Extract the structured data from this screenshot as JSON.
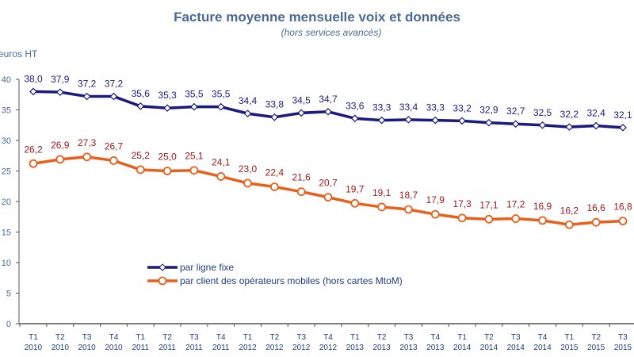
{
  "chart_data": {
    "type": "line",
    "title": "Facture moyenne mensuelle voix et données",
    "subtitle": "(hors services avancés)",
    "ylabel": "euros HT",
    "ylim": [
      0,
      40
    ],
    "yticks": [
      0,
      5,
      10,
      15,
      20,
      25,
      30,
      35,
      40
    ],
    "grid": false,
    "legend_placement": "center-left",
    "categories": [
      [
        "T1",
        "2010"
      ],
      [
        "T2",
        "2010"
      ],
      [
        "T3",
        "2010"
      ],
      [
        "T4",
        "2010"
      ],
      [
        "T1",
        "2011"
      ],
      [
        "T2",
        "2011"
      ],
      [
        "T3",
        "2011"
      ],
      [
        "T4",
        "2011"
      ],
      [
        "T1",
        "2012"
      ],
      [
        "T2",
        "2012"
      ],
      [
        "T3",
        "2012"
      ],
      [
        "T4",
        "2012"
      ],
      [
        "T1",
        "2013"
      ],
      [
        "T2",
        "2013"
      ],
      [
        "T3",
        "2013"
      ],
      [
        "T4",
        "2013"
      ],
      [
        "T1",
        "2014"
      ],
      [
        "T2",
        "2014"
      ],
      [
        "T3",
        "2014"
      ],
      [
        "T4",
        "2014"
      ],
      [
        "T1",
        "2015"
      ],
      [
        "T2",
        "2015"
      ],
      [
        "T3",
        "2015"
      ]
    ],
    "series": [
      {
        "name": "par ligne fixe",
        "color": "#1a1a80",
        "marker_fill": "#ffffff",
        "values": [
          38.0,
          37.9,
          37.2,
          37.2,
          35.6,
          35.3,
          35.5,
          35.5,
          34.4,
          33.8,
          34.5,
          34.7,
          33.6,
          33.3,
          33.4,
          33.3,
          33.2,
          32.9,
          32.7,
          32.5,
          32.2,
          32.4,
          32.1
        ]
      },
      {
        "name": "par client des opérateurs mobiles (hors cartes MtoM)",
        "color": "#e8601c",
        "marker_fill": "#ffffff",
        "label_color": "#a01818",
        "values": [
          26.2,
          26.9,
          27.3,
          26.7,
          25.2,
          25.0,
          25.1,
          24.1,
          23.0,
          22.4,
          21.6,
          20.7,
          19.7,
          19.1,
          18.7,
          17.9,
          17.3,
          17.1,
          17.2,
          16.9,
          16.2,
          16.6,
          16.8
        ]
      }
    ]
  }
}
